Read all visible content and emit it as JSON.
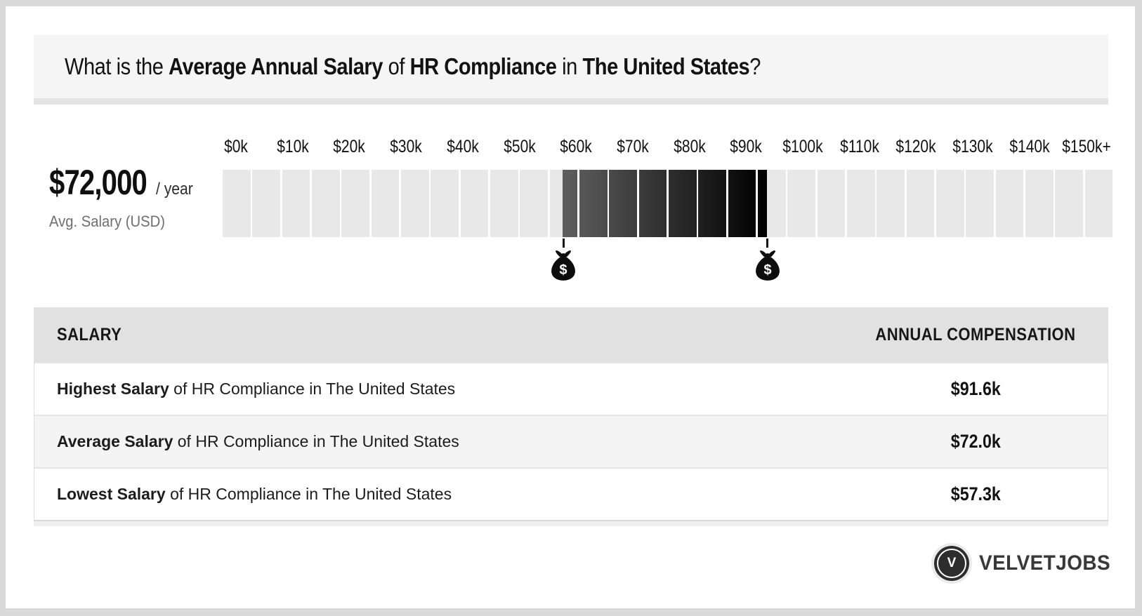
{
  "header": {
    "title_parts": [
      {
        "text": "What is the ",
        "bold": false
      },
      {
        "text": "Average Annual Salary",
        "bold": true
      },
      {
        "text": " of ",
        "bold": false
      },
      {
        "text": "HR Compliance",
        "bold": true
      },
      {
        "text": " in ",
        "bold": false
      },
      {
        "text": "The United States",
        "bold": true
      },
      {
        "text": "?",
        "bold": false
      }
    ]
  },
  "summary": {
    "amount": "$72,000",
    "per": "/ year",
    "caption": "Avg. Salary (USD)"
  },
  "chart_data": {
    "type": "range_bar",
    "axis_labels": [
      "$0k",
      "$10k",
      "$20k",
      "$30k",
      "$40k",
      "$50k",
      "$60k",
      "$70k",
      "$80k",
      "$90k",
      "$100k",
      "$110k",
      "$120k",
      "$130k",
      "$140k",
      "$150k+"
    ],
    "axis_min_k": 0,
    "axis_max_k": 150,
    "cells": 30,
    "cell_size_k": 5,
    "lowest_k": 57.3,
    "average_k": 72.0,
    "highest_k": 91.6,
    "unit": "USD thousands per year",
    "markers": [
      "lowest",
      "highest"
    ],
    "marker_symbol": "$",
    "colors": {
      "cell": "#e8e8e8",
      "gap": "#ffffff",
      "range_start": "#5f5f5f",
      "range_end": "#000000"
    }
  },
  "table": {
    "headers": [
      "SALARY",
      "ANNUAL COMPENSATION"
    ],
    "rows": [
      {
        "bold": "Highest Salary",
        "rest": " of HR Compliance in The United States",
        "value": "$91.6k"
      },
      {
        "bold": "Average Salary",
        "rest": " of HR Compliance in The United States",
        "value": "$72.0k"
      },
      {
        "bold": "Lowest Salary",
        "rest": " of HR Compliance in The United States",
        "value": "$57.3k"
      }
    ]
  },
  "footer": {
    "logo_letter": "V",
    "brand": "VELVETJOBS"
  }
}
